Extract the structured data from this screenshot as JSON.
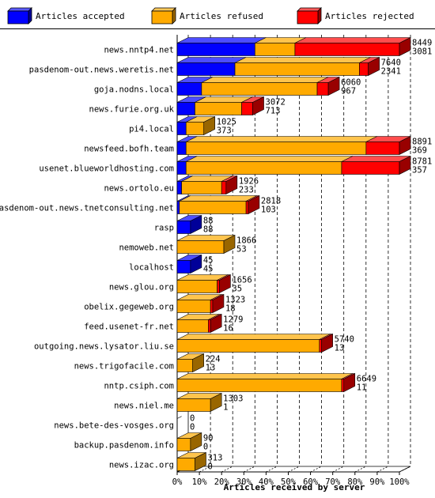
{
  "chart_data": {
    "type": "bar",
    "orientation": "horizontal",
    "stacked": true,
    "xlabel": "Articles received by server",
    "xlim": [
      0,
      100
    ],
    "x_ticks": [
      "0%",
      "10%",
      "20%",
      "30%",
      "40%",
      "50%",
      "60%",
      "70%",
      "80%",
      "90%",
      "100%"
    ],
    "grid": "vertical dashed",
    "legend_placement": "top",
    "series": [
      {
        "name": "Articles accepted",
        "color": "#0000ff"
      },
      {
        "name": "Articles refused",
        "color": "#ffaa00"
      },
      {
        "name": "Articles rejected",
        "color": "#ff0000"
      }
    ],
    "rows": [
      {
        "host": "news.nntp4.net",
        "total": "8449",
        "second": "3081",
        "pct": [
          35,
          18,
          47
        ]
      },
      {
        "host": "pasdenom-out.news.weretis.net",
        "total": "7640",
        "second": "2341",
        "pct": [
          26,
          56,
          4
        ]
      },
      {
        "host": "goja.nodns.local",
        "total": "6060",
        "second": "967",
        "pct": [
          11,
          52,
          5
        ]
      },
      {
        "host": "news.furie.org.uk",
        "total": "3072",
        "second": "713",
        "pct": [
          8,
          21,
          5
        ]
      },
      {
        "host": "pi4.local",
        "total": "1025",
        "second": "373",
        "pct": [
          4,
          8,
          0
        ]
      },
      {
        "host": "newsfeed.bofh.team",
        "total": "8891",
        "second": "369",
        "pct": [
          4,
          81,
          15
        ]
      },
      {
        "host": "usenet.blueworldhosting.com",
        "total": "8781",
        "second": "357",
        "pct": [
          4,
          70,
          26
        ]
      },
      {
        "host": "news.ortolo.eu",
        "total": "1926",
        "second": "233",
        "pct": [
          2,
          18,
          2
        ]
      },
      {
        "host": "pasdenom-out.news.tnetconsulting.net",
        "total": "2818",
        "second": "103",
        "pct": [
          1,
          30,
          1
        ]
      },
      {
        "host": "rasp",
        "total": "88",
        "second": "88",
        "pct": [
          6,
          0,
          0
        ]
      },
      {
        "host": "nemoweb.net",
        "total": "1866",
        "second": "53",
        "pct": [
          0,
          21,
          0
        ]
      },
      {
        "host": "localhost",
        "total": "45",
        "second": "45",
        "pct": [
          6,
          0,
          0
        ]
      },
      {
        "host": "news.glou.org",
        "total": "1656",
        "second": "35",
        "pct": [
          0,
          18,
          1
        ]
      },
      {
        "host": "obelix.gegeweb.org",
        "total": "1323",
        "second": "18",
        "pct": [
          0,
          15,
          1
        ]
      },
      {
        "host": "feed.usenet-fr.net",
        "total": "1279",
        "second": "16",
        "pct": [
          0,
          14,
          1
        ]
      },
      {
        "host": "outgoing.news.lysator.liu.se",
        "total": "5740",
        "second": "13",
        "pct": [
          0,
          64,
          1
        ]
      },
      {
        "host": "news.trigofacile.com",
        "total": "224",
        "second": "13",
        "pct": [
          0,
          7,
          0
        ]
      },
      {
        "host": "nntp.csiph.com",
        "total": "6649",
        "second": "11",
        "pct": [
          0,
          74,
          1
        ]
      },
      {
        "host": "news.niel.me",
        "total": "1303",
        "second": "1",
        "pct": [
          0,
          15,
          0
        ]
      },
      {
        "host": "news.bete-des-vosges.org",
        "total": "0",
        "second": "0",
        "pct": [
          0,
          0,
          0
        ]
      },
      {
        "host": "backup.pasdenom.info",
        "total": "90",
        "second": "0",
        "pct": [
          0,
          6,
          0
        ]
      },
      {
        "host": "news.izac.org",
        "total": "313",
        "second": "0",
        "pct": [
          0,
          8,
          0
        ]
      }
    ]
  }
}
